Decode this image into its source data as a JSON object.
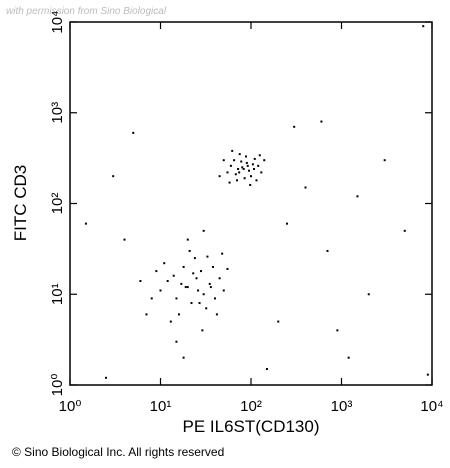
{
  "watermark": "with permission from Sino Biological",
  "footer": "© Sino Biological Inc. All rights reserved",
  "chart_data": {
    "type": "scatter",
    "xlabel": "PE  IL6ST(CD130)",
    "ylabel": "FITC CD3",
    "xscale": "log",
    "yscale": "log",
    "xlim": [
      1,
      10000
    ],
    "ylim": [
      1,
      10000
    ],
    "xticks": [
      {
        "value": 1,
        "label": "10⁰"
      },
      {
        "value": 10,
        "label": "10¹"
      },
      {
        "value": 100,
        "label": "10²"
      },
      {
        "value": 1000,
        "label": "10³"
      },
      {
        "value": 10000,
        "label": "10⁴"
      }
    ],
    "yticks": [
      {
        "value": 1,
        "label": "10⁰"
      },
      {
        "value": 10,
        "label": "10¹"
      },
      {
        "value": 100,
        "label": "10²"
      },
      {
        "value": 1000,
        "label": "10³"
      },
      {
        "value": 10000,
        "label": "10⁴"
      }
    ],
    "color": "#000000",
    "x": [
      80,
      65,
      100,
      90,
      55,
      120,
      70,
      75,
      110,
      60,
      95,
      85,
      130,
      50,
      72,
      105,
      88,
      68,
      115,
      78,
      140,
      45,
      62,
      98,
      83,
      58,
      125,
      92,
      74,
      108,
      20,
      15,
      25,
      30,
      12,
      18,
      22,
      35,
      10,
      28,
      16,
      40,
      24,
      14,
      32,
      19,
      26,
      8,
      45,
      21,
      13,
      38,
      17,
      29,
      11,
      50,
      23,
      6,
      33,
      27,
      15,
      42,
      9,
      36,
      20,
      55,
      18,
      30,
      7,
      48,
      300,
      2000,
      5000,
      1200,
      8000,
      400,
      700,
      3000,
      150,
      1.5,
      3,
      200,
      600,
      1500,
      2.5,
      4,
      250,
      9000,
      5,
      900
    ],
    "values": [
      250,
      300,
      200,
      280,
      220,
      260,
      180,
      350,
      310,
      260,
      230,
      190,
      220,
      300,
      240,
      270,
      330,
      210,
      180,
      290,
      300,
      200,
      380,
      160,
      240,
      170,
      340,
      260,
      220,
      240,
      12,
      9,
      15,
      10,
      14,
      20,
      8,
      13,
      11,
      18,
      6,
      9,
      25,
      16,
      7,
      12,
      11,
      9,
      15,
      30,
      5,
      20,
      13,
      4,
      22,
      11,
      17,
      14,
      26,
      8,
      3,
      6,
      18,
      12,
      40,
      19,
      2,
      50,
      6,
      28,
      700,
      10,
      50,
      2,
      9000,
      150,
      30,
      300,
      1.5,
      60,
      200,
      5,
      800,
      120,
      1.2,
      40,
      60,
      1.3,
      600,
      4
    ]
  }
}
